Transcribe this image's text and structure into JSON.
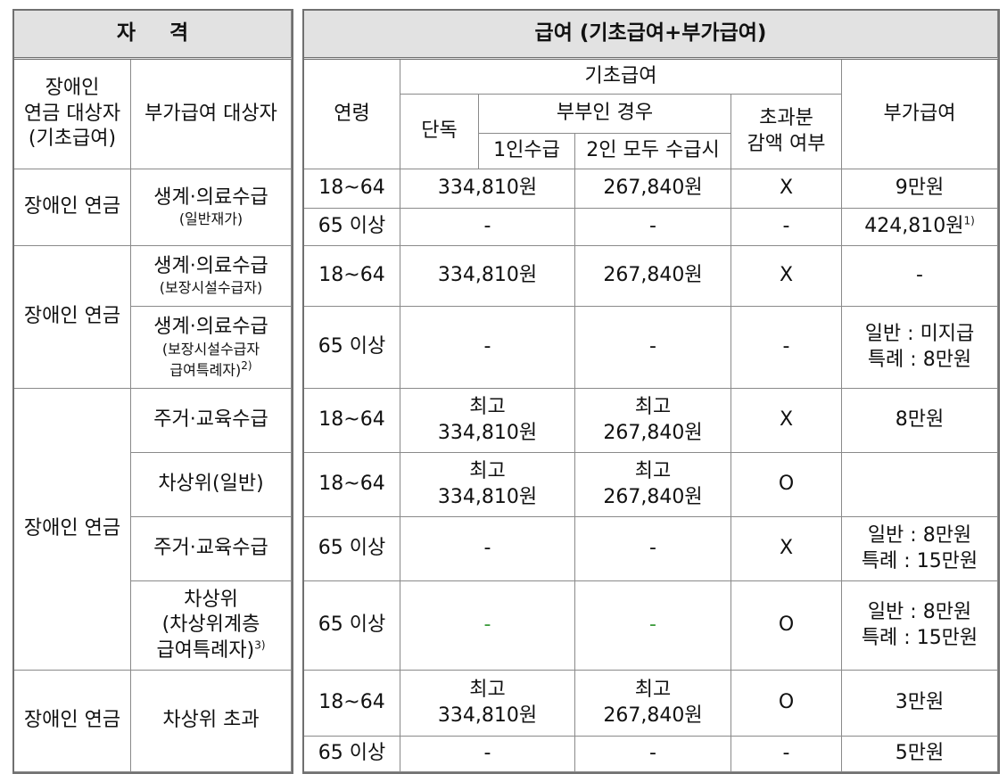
{
  "left": {
    "title": "자 격",
    "col_headers": [
      [
        "장애인",
        "연금 대상자",
        "(기초급여)"
      ],
      [
        "부가급여 대상자"
      ]
    ],
    "groups": [
      {
        "target": "장애인 연금",
        "rows": [
          {
            "lines": [
              "생계·의료수급"
            ],
            "sub": [
              "(일반재가)"
            ]
          }
        ]
      },
      {
        "target": "장애인 연금",
        "rows": [
          {
            "lines": [
              "생계·의료수급"
            ],
            "sub": [
              "(보장시설수급자)"
            ]
          },
          {
            "lines": [
              "생계·의료수급"
            ],
            "sub": [
              "(보장시설수급자",
              "급여특례자)"
            ],
            "note": "2)"
          }
        ]
      },
      {
        "target": "장애인 연금",
        "rows": [
          {
            "lines": [
              "주거·교육수급"
            ]
          },
          {
            "lines": [
              "차상위(일반)"
            ]
          },
          {
            "lines": [
              "주거·교육수급"
            ]
          },
          {
            "lines": [
              "차상위",
              "(차상위계층",
              "급여특례자)"
            ],
            "note": "3)"
          }
        ]
      },
      {
        "target": "장애인 연금",
        "rows": [
          {
            "lines": [
              "차상위 초과"
            ]
          }
        ]
      }
    ]
  },
  "right": {
    "title": "급여 (기초급여+부가급여)",
    "headers": {
      "age": "연령",
      "basic": "기초급여",
      "single": "단독",
      "couple": "부부인 경우",
      "one": "1인수급",
      "both": "2인 모두 수급시",
      "reduce": [
        "초과분",
        "감액 여부"
      ],
      "extra": "부가급여"
    },
    "rows": [
      {
        "age": "18~64",
        "single": [
          "334,810원"
        ],
        "couple": [
          "267,840원"
        ],
        "reduce": "X",
        "extra": [
          "9만원"
        ]
      },
      {
        "age": "65 이상",
        "single": [
          "-"
        ],
        "couple": [
          "-"
        ],
        "reduce": "-",
        "extra": [
          "424,810원"
        ],
        "note": "1)"
      },
      {
        "age": "18~64",
        "single": [
          "334,810원"
        ],
        "couple": [
          "267,840원"
        ],
        "reduce": "X",
        "extra": [
          "-"
        ]
      },
      {
        "age": "65 이상",
        "single": [
          "-"
        ],
        "couple": [
          "-"
        ],
        "reduce": "-",
        "extra": [
          "일반 : 미지급",
          "특례 : 8만원"
        ]
      },
      {
        "age": "18~64",
        "single": [
          "최고",
          "334,810원"
        ],
        "couple": [
          "최고",
          "267,840원"
        ],
        "reduce": "X",
        "extra": [
          "8만원"
        ]
      },
      {
        "age": "18~64",
        "single": [
          "최고",
          "334,810원"
        ],
        "couple": [
          "최고",
          "267,840원"
        ],
        "reduce": "O",
        "extra": null
      },
      {
        "age": "65 이상",
        "single": [
          "-"
        ],
        "couple": [
          "-"
        ],
        "reduce": "X",
        "extra": [
          "일반 : 8만원",
          "특례 : 15만원"
        ]
      },
      {
        "age": "65 이상",
        "single": [
          "-"
        ],
        "couple": [
          "-"
        ],
        "reduce": "O",
        "extra": [
          "일반 : 8만원",
          "특례 : 15만원"
        ],
        "dash_color": "#3a9a3a"
      },
      {
        "age": "18~64",
        "single": [
          "최고",
          "334,810원"
        ],
        "couple": [
          "최고",
          "267,840원"
        ],
        "reduce": "O",
        "extra": [
          "3만원"
        ]
      },
      {
        "age": "65 이상",
        "single": [
          "-"
        ],
        "couple": [
          "-"
        ],
        "reduce": "-",
        "extra": [
          "5만원"
        ]
      }
    ]
  }
}
